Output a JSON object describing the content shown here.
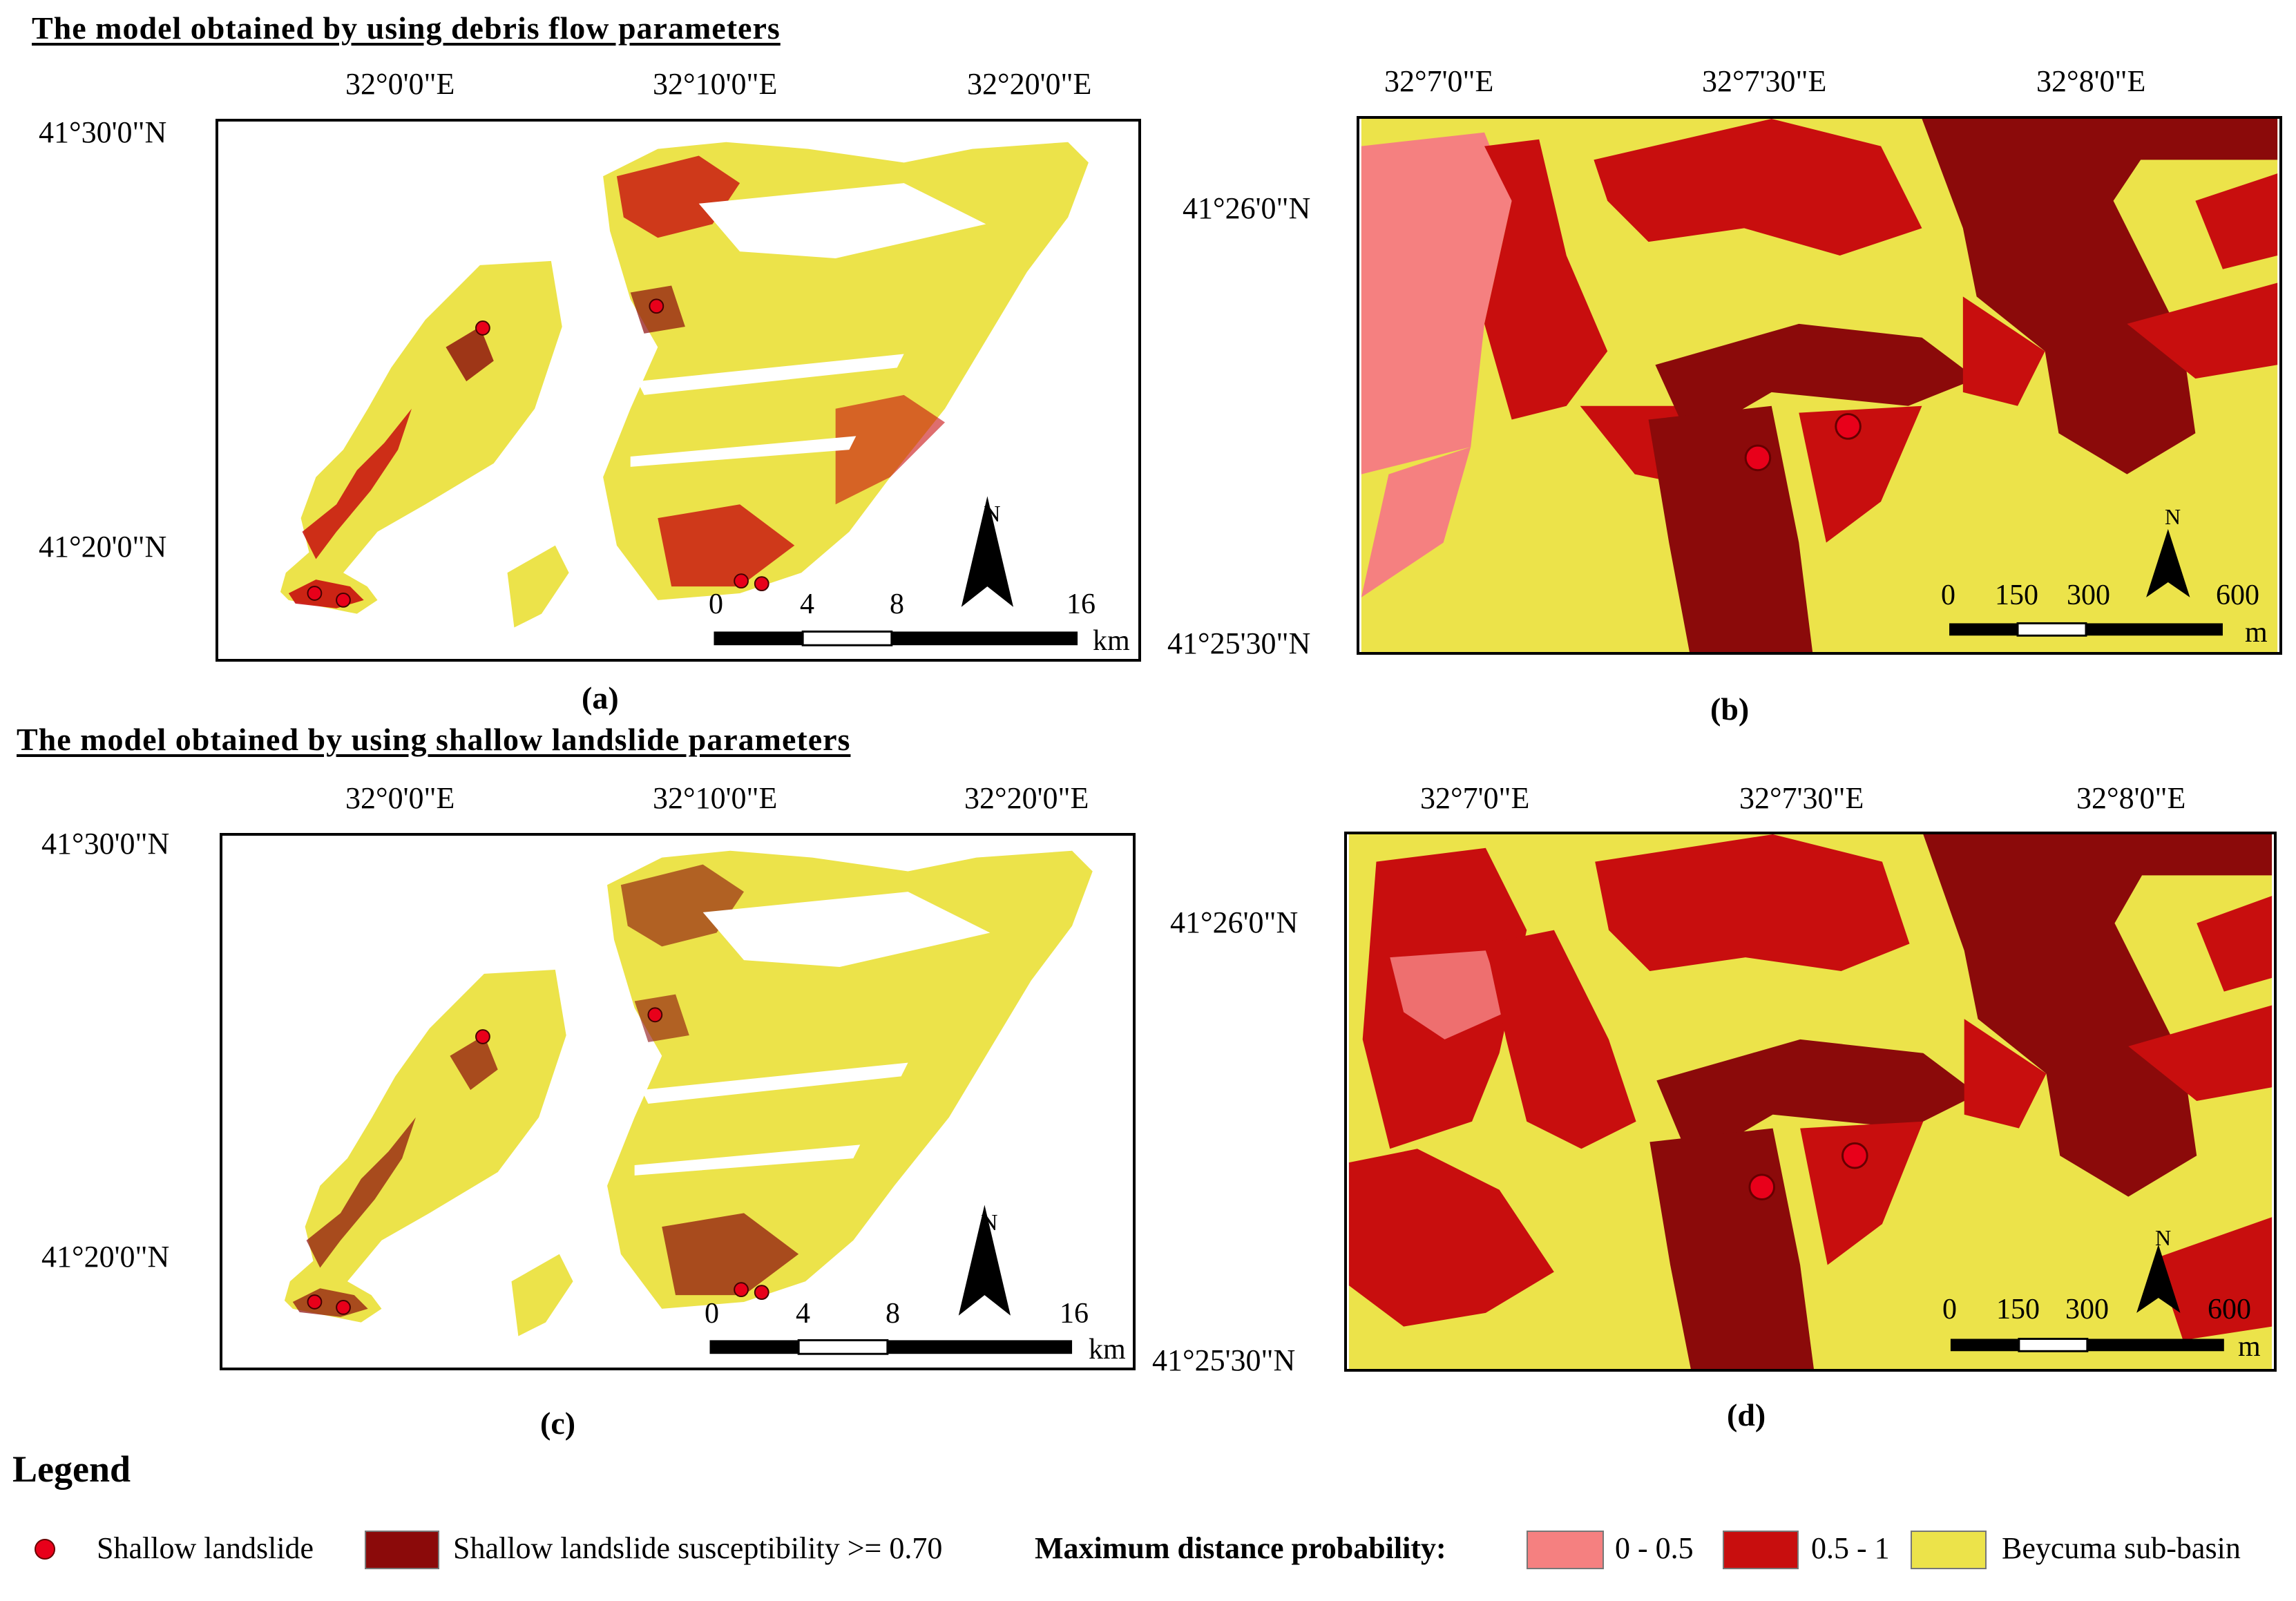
{
  "titles": {
    "top": "The model obtained by using debris flow parameters",
    "bottom": "The model obtained by using shallow landslide parameters"
  },
  "panels": {
    "a": {
      "label": "(a)",
      "lon_ticks": [
        "32°0'0\"E",
        "32°10'0\"E",
        "32°20'0\"E"
      ],
      "lat_ticks": [
        "41°30'0\"N",
        "41°20'0\"N"
      ],
      "scale": [
        "0",
        "4",
        "8",
        "16"
      ],
      "unit": "km",
      "north": "N"
    },
    "b": {
      "label": "(b)",
      "lon_ticks": [
        "32°7'0\"E",
        "32°7'30\"E",
        "32°8'0\"E"
      ],
      "lat_ticks": [
        "41°26'0\"N",
        "41°25'30\"N"
      ],
      "scale": [
        "0",
        "150",
        "300",
        "600"
      ],
      "unit": "m",
      "north": "N"
    },
    "c": {
      "label": "(c)",
      "lon_ticks": [
        "32°0'0\"E",
        "32°10'0\"E",
        "32°20'0\"E"
      ],
      "lat_ticks": [
        "41°30'0\"N",
        "41°20'0\"N"
      ],
      "scale": [
        "0",
        "4",
        "8",
        "16"
      ],
      "unit": "km",
      "north": "N"
    },
    "d": {
      "label": "(d)",
      "lon_ticks": [
        "32°7'0\"E",
        "32°7'30\"E",
        "32°8'0\"E"
      ],
      "lat_ticks": [
        "41°26'0\"N",
        "41°25'30\"N"
      ],
      "scale": [
        "0",
        "150",
        "300",
        "600"
      ],
      "unit": "m",
      "north": "N"
    }
  },
  "legend": {
    "title": "Legend",
    "shallow_landslide": "Shallow landslide",
    "susceptibility": "Shallow landslide susceptibility >= 0.70",
    "max_distance": "Maximum distance probability:",
    "range_low": "0 - 0.5",
    "range_high": "0.5 - 1",
    "basin": "Beycuma sub-basin"
  },
  "colors": {
    "landslide_point": "#e8001a",
    "susceptibility": "#8b0a0a",
    "prob_low": "#f58080",
    "prob_high": "#c80e0e",
    "basin": "#ece34a"
  }
}
